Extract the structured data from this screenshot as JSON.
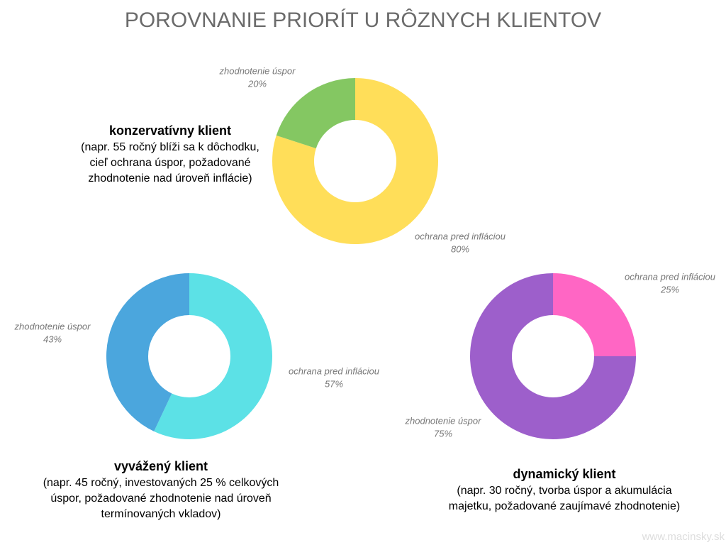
{
  "title": "POROVNANIE PRIORÍT U RÔZNYCH KLIENTOV",
  "watermark": "www.macinsky.sk",
  "chart_data": [
    {
      "type": "donut",
      "title": "konzervatívny klient",
      "description": [
        "(napr. 55 ročný blíži sa k dôchodku,",
        "cieľ ochrana úspor, požadované",
        "zhodnotenie nad úroveň inflácie)"
      ],
      "categories": [
        "ochrana pred infláciou",
        "zhodnotenie úspor"
      ],
      "values": [
        80,
        20
      ],
      "value_labels": [
        "80%",
        "20%"
      ],
      "colors": [
        "#ffde59",
        "#84c762"
      ]
    },
    {
      "type": "donut",
      "title": "vyvážený klient",
      "description": [
        "(napr. 45 ročný, investovaných 25 % celkových",
        "úspor, požadované zhodnotenie nad úroveň",
        "termínovaných vkladov)"
      ],
      "categories": [
        "ochrana pred infláciou",
        "zhodnotenie úspor"
      ],
      "values": [
        57,
        43
      ],
      "value_labels": [
        "57%",
        "43%"
      ],
      "colors": [
        "#5ce1e6",
        "#4ba6dd"
      ]
    },
    {
      "type": "donut",
      "title": "dynamický klient",
      "description": [
        "(napr. 30 ročný, tvorba úspor a akumulácia",
        "majetku, požadované zaujímavé zhodnotenie)"
      ],
      "categories": [
        "ochrana pred infláciou",
        "zhodnotenie úspor"
      ],
      "values": [
        25,
        75
      ],
      "value_labels": [
        "25%",
        "75%"
      ],
      "colors": [
        "#ff66c4",
        "#9d5fcb"
      ]
    }
  ]
}
